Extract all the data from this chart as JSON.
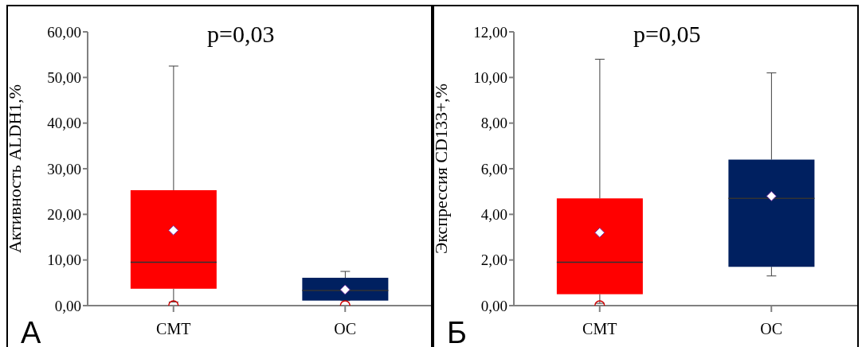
{
  "chart_data": [
    {
      "type": "box",
      "categories": [
        "CMT",
        "OC"
      ],
      "colors": [
        "#ff0000",
        "#002060"
      ],
      "ylabel": "Активность ALDH1,%",
      "ylim": [
        0,
        60
      ],
      "yticks": [
        {
          "value": 0,
          "label": "0,00"
        },
        {
          "value": 10,
          "label": "10,00"
        },
        {
          "value": 20,
          "label": "20,00"
        },
        {
          "value": 30,
          "label": "30,00"
        },
        {
          "value": 40,
          "label": "40,00"
        },
        {
          "value": 50,
          "label": "50,00"
        },
        {
          "value": 60,
          "label": "60,00"
        }
      ],
      "grid": false,
      "legend": false,
      "boxes": [
        {
          "low": 0.8,
          "q1": 3.7,
          "median": 9.5,
          "q3": 25.3,
          "high": 52.5,
          "mean": 16.5,
          "outliers": [
            0
          ]
        },
        {
          "low": 1.1,
          "q1": 1.1,
          "median": 3.3,
          "q3": 6.1,
          "high": 7.5,
          "mean": 3.5,
          "outliers": [
            0
          ]
        }
      ],
      "annotations": [
        "p=0,03",
        "A"
      ]
    },
    {
      "type": "box",
      "categories": [
        "CMT",
        "OC"
      ],
      "colors": [
        "#ff0000",
        "#002060"
      ],
      "ylabel": "Экспрессия CD133+,%",
      "ylim": [
        0,
        12
      ],
      "yticks": [
        {
          "value": 0,
          "label": "0,00"
        },
        {
          "value": 2,
          "label": "2,00"
        },
        {
          "value": 4,
          "label": "4,00"
        },
        {
          "value": 6,
          "label": "6,00"
        },
        {
          "value": 8,
          "label": "8,00"
        },
        {
          "value": 10,
          "label": "10,00"
        },
        {
          "value": 12,
          "label": "12,00"
        }
      ],
      "grid": false,
      "legend": false,
      "boxes": [
        {
          "low": 0.1,
          "q1": 0.5,
          "median": 1.9,
          "q3": 4.7,
          "high": 10.8,
          "mean": 3.2,
          "outliers": [
            0
          ]
        },
        {
          "low": 1.3,
          "q1": 1.7,
          "median": 4.7,
          "q3": 6.4,
          "high": 10.2,
          "mean": 4.8
        }
      ],
      "annotations": [
        "p=0,05",
        "Б"
      ]
    }
  ]
}
